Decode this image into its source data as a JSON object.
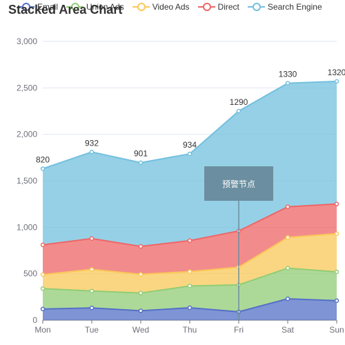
{
  "chart_data": {
    "type": "area",
    "title": "Stacked Area Chart",
    "categories": [
      "Mon",
      "Tue",
      "Wed",
      "Thu",
      "Fri",
      "Sat",
      "Sun"
    ],
    "ylim": [
      0,
      3000
    ],
    "y_ticks": [
      "0",
      "500",
      "1,000",
      "1,500",
      "2,000",
      "2,500",
      "3,000"
    ],
    "grid": true,
    "stacked": true,
    "legend_position": "top",
    "series": [
      {
        "name": "Email",
        "values": [
          120,
          132,
          101,
          134,
          90,
          230,
          210
        ],
        "color": "#5470c6"
      },
      {
        "name": "Union Ads",
        "values": [
          220,
          182,
          191,
          234,
          290,
          330,
          310
        ],
        "color": "#91cc75"
      },
      {
        "name": "Video Ads",
        "values": [
          150,
          232,
          201,
          154,
          190,
          330,
          410
        ],
        "color": "#fac858"
      },
      {
        "name": "Direct",
        "values": [
          320,
          332,
          301,
          334,
          390,
          330,
          320
        ],
        "color": "#ee6666"
      },
      {
        "name": "Search Engine",
        "values": [
          820,
          932,
          901,
          934,
          1290,
          1330,
          1320
        ],
        "color": "#73c0de"
      }
    ],
    "top_labels": [
      "820",
      "932",
      "901",
      "934",
      "1290",
      "1330",
      "1320"
    ],
    "annotation": {
      "text": "预警节点",
      "category": "Fri"
    }
  }
}
